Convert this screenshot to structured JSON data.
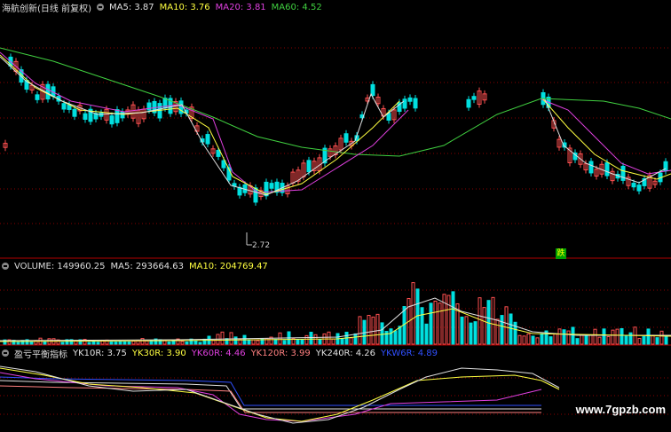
{
  "price_panel": {
    "title": "海航创新(日线 前复权)",
    "ma5": "MA5: 3.87",
    "ma10": "MA10: 3.76",
    "ma20": "MA20: 3.81",
    "ma60": "MA60: 4.52",
    "low_label": "2.72",
    "badge": "跌"
  },
  "volume_panel": {
    "volume": "VOLUME: 149960.25",
    "ma5": "MA5: 293664.63",
    "ma10": "MA10: 204769.47"
  },
  "indicator_panel": {
    "name": "盈亏平衡指标",
    "yk10": "YK10R: 3.75",
    "yk30": "YK30R: 3.90",
    "yk60": "YK60R: 4.46",
    "yk120": "YK120R: 3.99",
    "yk240": "YK240R: 4.26",
    "ykw": "YKW6R: 4.89"
  },
  "watermark": "www.7gpzb.com",
  "colors": {
    "up": "#ff5050",
    "down": "#00e0e0",
    "ma5": "#e0e0e0",
    "ma10": "#ffff40",
    "ma20": "#e040e0",
    "ma60": "#40d040",
    "grid": "#8a0000"
  }
}
